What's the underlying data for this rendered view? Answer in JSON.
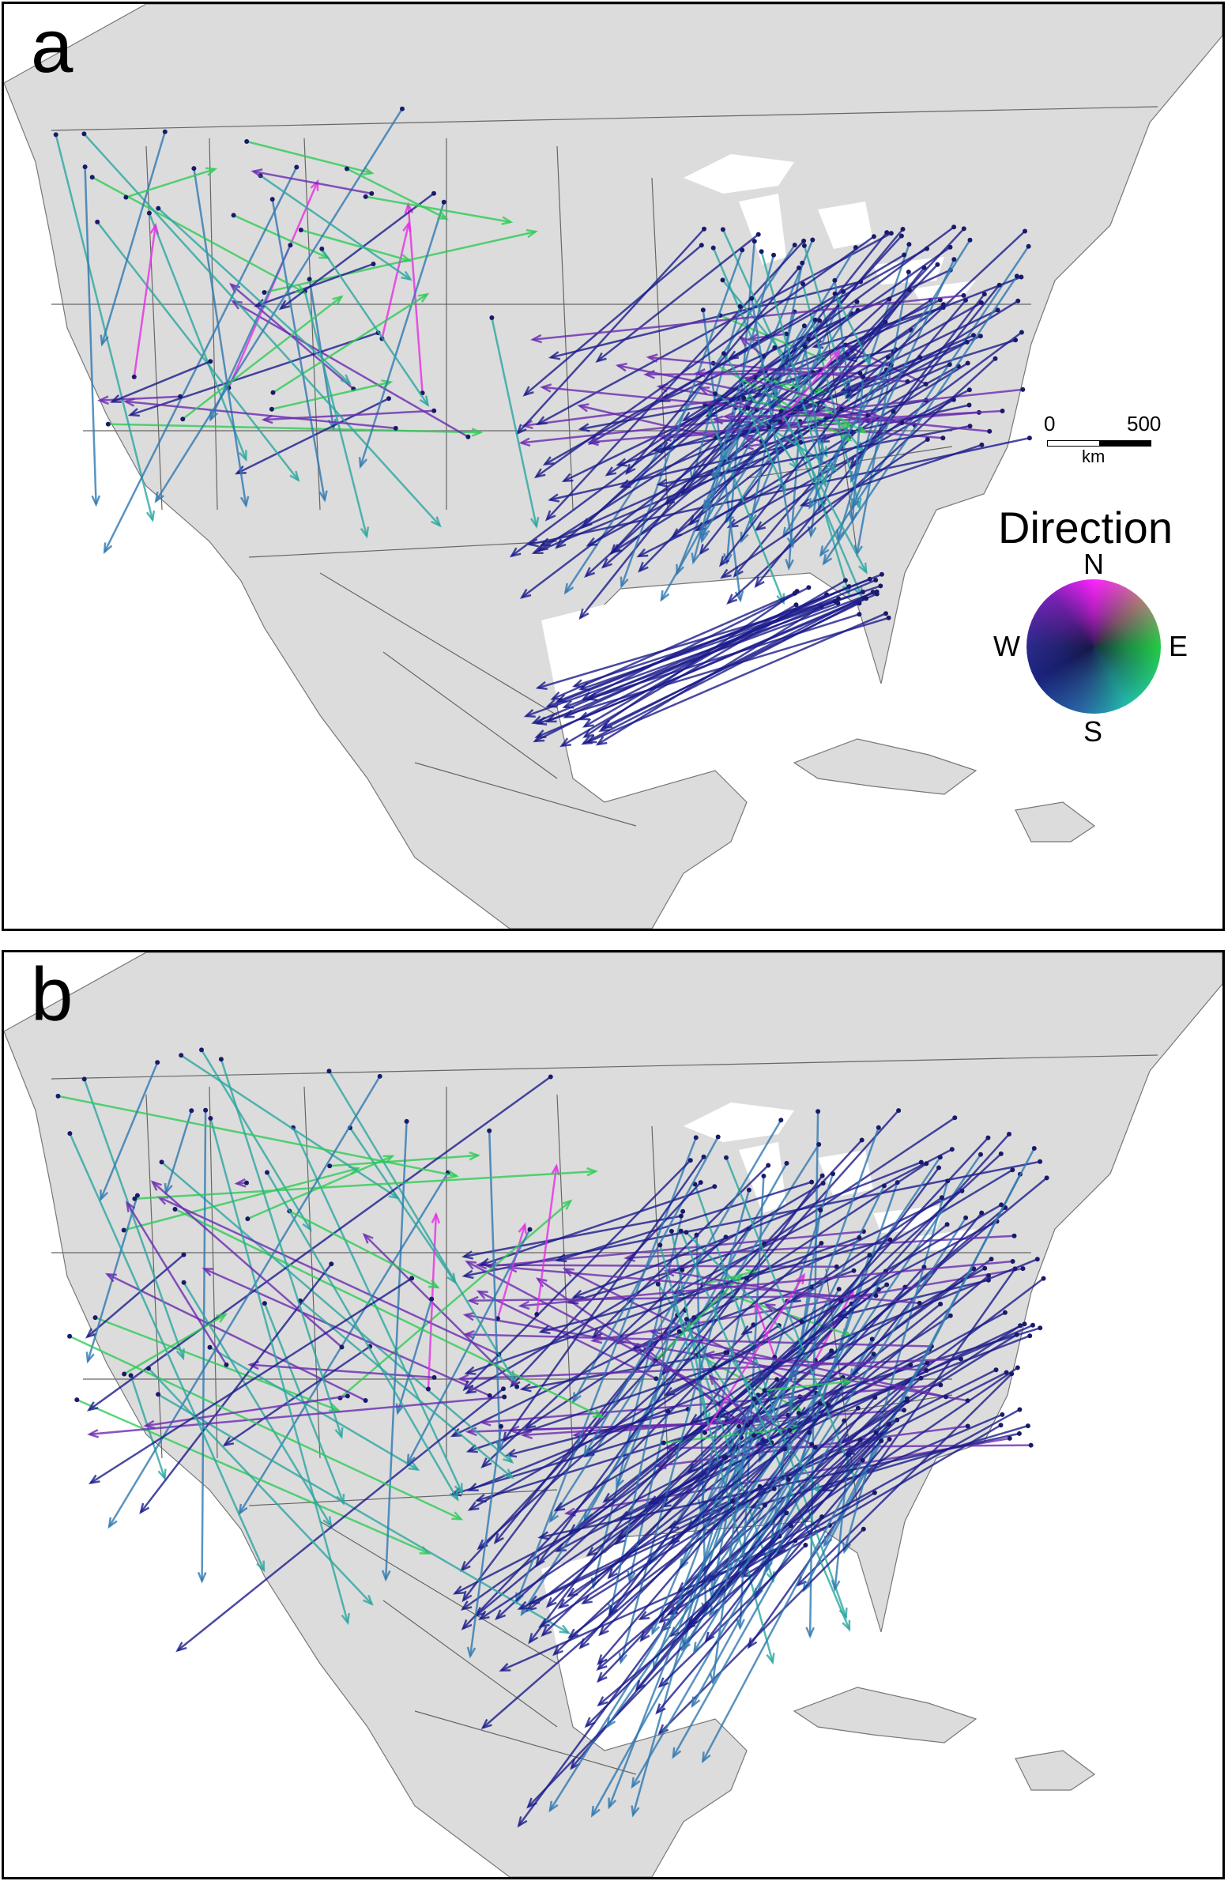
{
  "panels": [
    {
      "id": "a",
      "label": "a"
    },
    {
      "id": "b",
      "label": "b"
    }
  ],
  "scale_bar": {
    "zero": "0",
    "max": "500",
    "unit": "km"
  },
  "legend": {
    "title": "Direction",
    "north": "N",
    "east": "E",
    "south": "S",
    "west": "W"
  },
  "colors": {
    "land": "#dcdcdc",
    "water": "#ffffff",
    "border": "#555555",
    "direction_north": "#ff22ff",
    "direction_east": "#22cc44",
    "direction_south": "#2a8aa8",
    "direction_west": "#1a1a8a"
  }
}
